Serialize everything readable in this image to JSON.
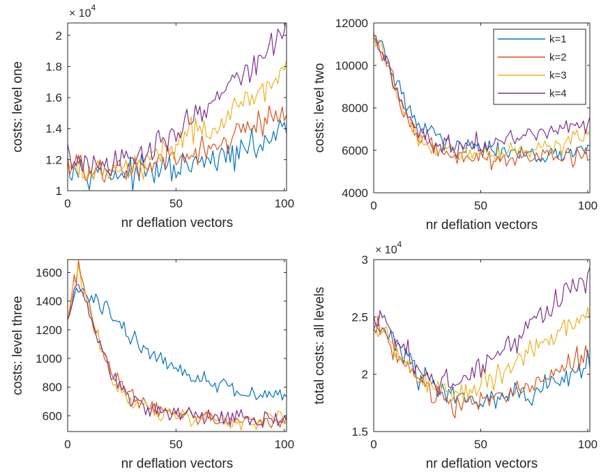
{
  "figure": {
    "colors": {
      "k1": "#0072BD",
      "k2": "#D95319",
      "k3": "#EDB120",
      "k4": "#7E2F8E",
      "axis": "#262626"
    }
  },
  "chart_data": [
    {
      "id": "level-one",
      "type": "line",
      "xlabel": "nr deflation vectors",
      "ylabel": "costs: level one",
      "exponent": "× 10",
      "exponent_power": "4",
      "xlim": [
        0,
        101
      ],
      "ylim": [
        1.0,
        2.08
      ],
      "xticks": [
        0,
        50,
        100
      ],
      "yticks": [
        1,
        1.2,
        1.4,
        1.6,
        1.8,
        2
      ],
      "ytick_labels": [
        "1",
        "1.2",
        "1.4",
        "1.6",
        "1.8",
        "2"
      ],
      "noise": 0.045,
      "series": [
        {
          "key": "k1",
          "start": [
            0,
            1.22
          ],
          "anchors": [
            [
              0,
              1.17
            ],
            [
              15,
              1.12
            ],
            [
              30,
              1.11
            ],
            [
              50,
              1.14
            ],
            [
              70,
              1.2
            ],
            [
              90,
              1.3
            ],
            [
              101,
              1.42
            ]
          ]
        },
        {
          "key": "k2",
          "start": [
            0,
            1.2
          ],
          "anchors": [
            [
              0,
              1.15
            ],
            [
              15,
              1.12
            ],
            [
              30,
              1.13
            ],
            [
              50,
              1.2
            ],
            [
              70,
              1.3
            ],
            [
              90,
              1.44
            ],
            [
              101,
              1.54
            ]
          ]
        },
        {
          "key": "k3",
          "start": [
            0,
            1.22
          ],
          "anchors": [
            [
              0,
              1.15
            ],
            [
              15,
              1.13
            ],
            [
              30,
              1.15
            ],
            [
              50,
              1.31
            ],
            [
              70,
              1.46
            ],
            [
              90,
              1.65
            ],
            [
              101,
              1.8
            ]
          ]
        },
        {
          "key": "k4",
          "start": [
            0,
            1.3
          ],
          "anchors": [
            [
              0,
              1.2
            ],
            [
              15,
              1.14
            ],
            [
              30,
              1.2
            ],
            [
              50,
              1.39
            ],
            [
              70,
              1.61
            ],
            [
              90,
              1.86
            ],
            [
              101,
              2.08
            ]
          ]
        }
      ]
    },
    {
      "id": "level-two",
      "type": "line",
      "xlabel": "nr deflation vectors",
      "ylabel": "costs: level two",
      "xlim": [
        0,
        101
      ],
      "ylim": [
        4000,
        12000
      ],
      "xticks": [
        0,
        50,
        100
      ],
      "yticks": [
        4000,
        6000,
        8000,
        10000,
        12000
      ],
      "ytick_labels": [
        "4000",
        "6000",
        "8000",
        "10000",
        "12000"
      ],
      "noise": 220,
      "legend": {
        "position": "top-right",
        "entries": [
          "k=1",
          "k=2",
          "k=3",
          "k=4"
        ]
      },
      "series": [
        {
          "key": "k1",
          "name": "k=1",
          "start": [
            0,
            11300
          ],
          "anchors": [
            [
              0,
              11300
            ],
            [
              5,
              10700
            ],
            [
              10,
              9200
            ],
            [
              15,
              8200
            ],
            [
              20,
              7400
            ],
            [
              30,
              6600
            ],
            [
              40,
              6200
            ],
            [
              50,
              6050
            ],
            [
              60,
              6000
            ],
            [
              70,
              5900
            ],
            [
              80,
              5800
            ],
            [
              90,
              5850
            ],
            [
              101,
              6000
            ]
          ]
        },
        {
          "key": "k2",
          "name": "k=2",
          "start": [
            0,
            11500
          ],
          "anchors": [
            [
              0,
              11500
            ],
            [
              5,
              10400
            ],
            [
              10,
              8900
            ],
            [
              15,
              7700
            ],
            [
              20,
              6800
            ],
            [
              30,
              5950
            ],
            [
              40,
              5700
            ],
            [
              50,
              5550
            ],
            [
              60,
              5600
            ],
            [
              70,
              5650
            ],
            [
              80,
              5700
            ],
            [
              90,
              5750
            ],
            [
              101,
              5800
            ]
          ]
        },
        {
          "key": "k3",
          "name": "k=3",
          "start": [
            0,
            11600
          ],
          "anchors": [
            [
              0,
              11500
            ],
            [
              5,
              10500
            ],
            [
              10,
              8900
            ],
            [
              15,
              7700
            ],
            [
              20,
              6800
            ],
            [
              30,
              6000
            ],
            [
              40,
              5800
            ],
            [
              50,
              5800
            ],
            [
              60,
              5900
            ],
            [
              70,
              6050
            ],
            [
              80,
              6200
            ],
            [
              90,
              6400
            ],
            [
              101,
              6700
            ]
          ]
        },
        {
          "key": "k4",
          "name": "k=4",
          "start": [
            0,
            11400
          ],
          "anchors": [
            [
              0,
              11400
            ],
            [
              5,
              10500
            ],
            [
              10,
              9000
            ],
            [
              15,
              7800
            ],
            [
              20,
              7000
            ],
            [
              30,
              6300
            ],
            [
              40,
              6200
            ],
            [
              50,
              6250
            ],
            [
              60,
              6450
            ],
            [
              70,
              6700
            ],
            [
              80,
              6950
            ],
            [
              90,
              7150
            ],
            [
              101,
              7300
            ]
          ]
        }
      ]
    },
    {
      "id": "level-three",
      "type": "line",
      "xlabel": "nr deflation vectors",
      "ylabel": "costs: level three",
      "xlim": [
        0,
        101
      ],
      "ylim": [
        490,
        1690
      ],
      "xticks": [
        0,
        50,
        100
      ],
      "yticks": [
        600,
        800,
        1000,
        1200,
        1400,
        1600
      ],
      "ytick_labels": [
        "600",
        "800",
        "1000",
        "1200",
        "1400",
        "1600"
      ],
      "noise": 30,
      "series": [
        {
          "key": "k1",
          "start": [
            0,
            1270
          ],
          "anchors": [
            [
              0,
              1270
            ],
            [
              3,
              1430
            ],
            [
              6,
              1480
            ],
            [
              10,
              1420
            ],
            [
              20,
              1320
            ],
            [
              30,
              1150
            ],
            [
              40,
              1010
            ],
            [
              50,
              930
            ],
            [
              60,
              870
            ],
            [
              70,
              820
            ],
            [
              80,
              770
            ],
            [
              90,
              740
            ],
            [
              101,
              760
            ]
          ]
        },
        {
          "key": "k2",
          "start": [
            0,
            1270
          ],
          "anchors": [
            [
              0,
              1270
            ],
            [
              3,
              1520
            ],
            [
              5,
              1620
            ],
            [
              8,
              1450
            ],
            [
              12,
              1220
            ],
            [
              20,
              900
            ],
            [
              30,
              720
            ],
            [
              40,
              640
            ],
            [
              50,
              610
            ],
            [
              60,
              590
            ],
            [
              70,
              580
            ],
            [
              80,
              570
            ],
            [
              90,
              560
            ],
            [
              101,
              570
            ]
          ]
        },
        {
          "key": "k3",
          "start": [
            0,
            1270
          ],
          "anchors": [
            [
              0,
              1270
            ],
            [
              3,
              1540
            ],
            [
              5,
              1640
            ],
            [
              8,
              1450
            ],
            [
              12,
              1200
            ],
            [
              20,
              880
            ],
            [
              30,
              700
            ],
            [
              40,
              620
            ],
            [
              50,
              600
            ],
            [
              60,
              590
            ],
            [
              70,
              575
            ],
            [
              80,
              565
            ],
            [
              90,
              560
            ],
            [
              101,
              580
            ]
          ]
        },
        {
          "key": "k4",
          "start": [
            0,
            1270
          ],
          "anchors": [
            [
              0,
              1270
            ],
            [
              3,
              1480
            ],
            [
              5,
              1560
            ],
            [
              8,
              1430
            ],
            [
              12,
              1200
            ],
            [
              20,
              900
            ],
            [
              30,
              720
            ],
            [
              40,
              640
            ],
            [
              50,
              615
            ],
            [
              60,
              600
            ],
            [
              70,
              590
            ],
            [
              80,
              580
            ],
            [
              90,
              580
            ],
            [
              101,
              590
            ]
          ]
        }
      ]
    },
    {
      "id": "all-levels",
      "type": "line",
      "xlabel": "nr deflation vectors",
      "ylabel": "total costs: all levels",
      "exponent": "× 10",
      "exponent_power": "4",
      "xlim": [
        0,
        101
      ],
      "ylim": [
        1.5,
        3.0
      ],
      "xticks": [
        0,
        50,
        100
      ],
      "yticks": [
        1.5,
        2,
        2.5,
        3
      ],
      "ytick_labels": [
        "1.5",
        "2",
        "2.5",
        "3"
      ],
      "noise": 0.055,
      "series": [
        {
          "key": "k1",
          "start": [
            0,
            2.4
          ],
          "anchors": [
            [
              0,
              2.4
            ],
            [
              5,
              2.42
            ],
            [
              10,
              2.25
            ],
            [
              20,
              2.02
            ],
            [
              30,
              1.9
            ],
            [
              40,
              1.83
            ],
            [
              50,
              1.8
            ],
            [
              60,
              1.81
            ],
            [
              70,
              1.84
            ],
            [
              80,
              1.9
            ],
            [
              90,
              1.98
            ],
            [
              101,
              2.1
            ]
          ]
        },
        {
          "key": "k2",
          "start": [
            0,
            2.4
          ],
          "anchors": [
            [
              0,
              2.4
            ],
            [
              5,
              2.38
            ],
            [
              10,
              2.2
            ],
            [
              20,
              1.97
            ],
            [
              30,
              1.82
            ],
            [
              40,
              1.75
            ],
            [
              50,
              1.76
            ],
            [
              60,
              1.8
            ],
            [
              70,
              1.87
            ],
            [
              80,
              1.96
            ],
            [
              90,
              2.07
            ],
            [
              101,
              2.18
            ]
          ]
        },
        {
          "key": "k3",
          "start": [
            0,
            2.45
          ],
          "anchors": [
            [
              0,
              2.42
            ],
            [
              5,
              2.4
            ],
            [
              10,
              2.22
            ],
            [
              20,
              1.99
            ],
            [
              30,
              1.85
            ],
            [
              40,
              1.82
            ],
            [
              50,
              1.9
            ],
            [
              60,
              2.02
            ],
            [
              70,
              2.15
            ],
            [
              80,
              2.28
            ],
            [
              90,
              2.4
            ],
            [
              101,
              2.52
            ]
          ]
        },
        {
          "key": "k4",
          "start": [
            0,
            2.5
          ],
          "anchors": [
            [
              0,
              2.48
            ],
            [
              5,
              2.5
            ],
            [
              10,
              2.3
            ],
            [
              20,
              2.06
            ],
            [
              30,
              1.92
            ],
            [
              40,
              1.92
            ],
            [
              50,
              2.05
            ],
            [
              60,
              2.2
            ],
            [
              70,
              2.38
            ],
            [
              80,
              2.55
            ],
            [
              90,
              2.7
            ],
            [
              101,
              2.85
            ]
          ]
        }
      ]
    }
  ]
}
